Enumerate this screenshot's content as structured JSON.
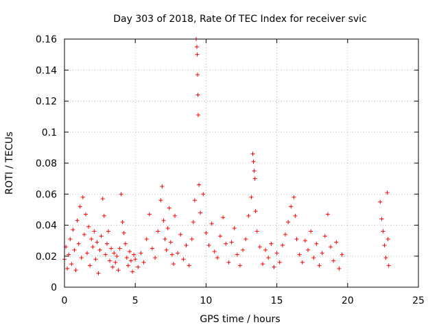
{
  "chart_data": {
    "type": "scatter",
    "title": "Day 303 of 2018, Rate Of TEC Index for receiver svic",
    "xlabel": "GPS time / hours",
    "ylabel": "ROTI / TECUs",
    "xlim": [
      0,
      25
    ],
    "ylim": [
      0,
      0.16
    ],
    "xticks": [
      0,
      5,
      10,
      15,
      20,
      25
    ],
    "xtick_labels": [
      "0",
      "5",
      "10",
      "15",
      "20",
      "25"
    ],
    "yticks": [
      0,
      0.02,
      0.04,
      0.06,
      0.08,
      0.1,
      0.12,
      0.14,
      0.16
    ],
    "ytick_labels": [
      "0",
      "0.02",
      "0.04",
      "0.06",
      "0.08",
      "0.1",
      "0.12",
      "0.14",
      "0.16"
    ],
    "grid": true,
    "marker": "+",
    "color": "#ff0000",
    "series": [
      {
        "name": "ROTI",
        "points": [
          [
            0.0,
            0.018
          ],
          [
            0.1,
            0.026
          ],
          [
            0.2,
            0.012
          ],
          [
            0.3,
            0.021
          ],
          [
            0.4,
            0.031
          ],
          [
            0.5,
            0.015
          ],
          [
            0.6,
            0.037
          ],
          [
            0.7,
            0.024
          ],
          [
            0.8,
            0.011
          ],
          [
            0.9,
            0.043
          ],
          [
            1.0,
            0.028
          ],
          [
            1.1,
            0.052
          ],
          [
            1.2,
            0.019
          ],
          [
            1.3,
            0.058
          ],
          [
            1.4,
            0.034
          ],
          [
            1.5,
            0.047
          ],
          [
            1.6,
            0.022
          ],
          [
            1.7,
            0.039
          ],
          [
            1.8,
            0.014
          ],
          [
            1.9,
            0.031
          ],
          [
            2.0,
            0.026
          ],
          [
            2.1,
            0.036
          ],
          [
            2.2,
            0.018
          ],
          [
            2.3,
            0.029
          ],
          [
            2.4,
            0.009
          ],
          [
            2.5,
            0.024
          ],
          [
            2.6,
            0.033
          ],
          [
            2.7,
            0.057
          ],
          [
            2.8,
            0.046
          ],
          [
            2.9,
            0.021
          ],
          [
            3.0,
            0.028
          ],
          [
            3.1,
            0.036
          ],
          [
            3.2,
            0.017
          ],
          [
            3.3,
            0.025
          ],
          [
            3.4,
            0.013
          ],
          [
            3.5,
            0.022
          ],
          [
            3.6,
            0.016
          ],
          [
            3.7,
            0.02
          ],
          [
            3.8,
            0.011
          ],
          [
            3.9,
            0.025
          ],
          [
            4.0,
            0.06
          ],
          [
            4.1,
            0.042
          ],
          [
            4.2,
            0.035
          ],
          [
            4.3,
            0.028
          ],
          [
            4.4,
            0.019
          ],
          [
            4.5,
            0.014
          ],
          [
            4.6,
            0.023
          ],
          [
            4.7,
            0.017
          ],
          [
            4.8,
            0.01
          ],
          [
            4.9,
            0.021
          ],
          [
            5.0,
            0.018
          ],
          [
            5.2,
            0.013
          ],
          [
            5.4,
            0.022
          ],
          [
            5.6,
            0.016
          ],
          [
            5.8,
            0.031
          ],
          [
            6.0,
            0.047
          ],
          [
            6.2,
            0.025
          ],
          [
            6.4,
            0.019
          ],
          [
            6.6,
            0.036
          ],
          [
            6.8,
            0.056
          ],
          [
            6.9,
            0.065
          ],
          [
            7.0,
            0.043
          ],
          [
            7.1,
            0.031
          ],
          [
            7.2,
            0.024
          ],
          [
            7.3,
            0.038
          ],
          [
            7.4,
            0.051
          ],
          [
            7.5,
            0.029
          ],
          [
            7.6,
            0.021
          ],
          [
            7.7,
            0.015
          ],
          [
            7.8,
            0.046
          ],
          [
            8.0,
            0.022
          ],
          [
            8.2,
            0.034
          ],
          [
            8.4,
            0.018
          ],
          [
            8.6,
            0.027
          ],
          [
            8.8,
            0.014
          ],
          [
            9.0,
            0.031
          ],
          [
            9.1,
            0.042
          ],
          [
            9.2,
            0.056
          ],
          [
            9.3,
            0.16
          ],
          [
            9.35,
            0.155
          ],
          [
            9.38,
            0.15
          ],
          [
            9.4,
            0.137
          ],
          [
            9.42,
            0.124
          ],
          [
            9.45,
            0.111
          ],
          [
            9.5,
            0.066
          ],
          [
            9.6,
            0.048
          ],
          [
            9.8,
            0.06
          ],
          [
            10.0,
            0.035
          ],
          [
            10.2,
            0.027
          ],
          [
            10.4,
            0.041
          ],
          [
            10.6,
            0.023
          ],
          [
            10.8,
            0.019
          ],
          [
            11.0,
            0.033
          ],
          [
            11.2,
            0.045
          ],
          [
            11.4,
            0.028
          ],
          [
            11.6,
            0.016
          ],
          [
            11.8,
            0.029
          ],
          [
            12.0,
            0.038
          ],
          [
            12.2,
            0.021
          ],
          [
            12.4,
            0.014
          ],
          [
            12.6,
            0.024
          ],
          [
            12.8,
            0.031
          ],
          [
            13.0,
            0.046
          ],
          [
            13.2,
            0.058
          ],
          [
            13.3,
            0.086
          ],
          [
            13.35,
            0.081
          ],
          [
            13.4,
            0.075
          ],
          [
            13.45,
            0.07
          ],
          [
            13.5,
            0.049
          ],
          [
            13.6,
            0.036
          ],
          [
            13.8,
            0.026
          ],
          [
            14.0,
            0.015
          ],
          [
            14.2,
            0.024
          ],
          [
            14.4,
            0.019
          ],
          [
            14.6,
            0.028
          ],
          [
            14.8,
            0.013
          ],
          [
            15.0,
            0.022
          ],
          [
            15.2,
            0.016
          ],
          [
            15.4,
            0.027
          ],
          [
            15.6,
            0.034
          ],
          [
            15.8,
            0.042
          ],
          [
            16.0,
            0.052
          ],
          [
            16.2,
            0.058
          ],
          [
            16.3,
            0.046
          ],
          [
            16.4,
            0.031
          ],
          [
            16.6,
            0.021
          ],
          [
            16.8,
            0.016
          ],
          [
            17.0,
            0.03
          ],
          [
            17.2,
            0.024
          ],
          [
            17.4,
            0.036
          ],
          [
            17.6,
            0.019
          ],
          [
            17.8,
            0.028
          ],
          [
            18.0,
            0.014
          ],
          [
            18.2,
            0.022
          ],
          [
            18.4,
            0.033
          ],
          [
            18.6,
            0.047
          ],
          [
            18.8,
            0.026
          ],
          [
            19.0,
            0.017
          ],
          [
            19.2,
            0.029
          ],
          [
            19.4,
            0.012
          ],
          [
            19.6,
            0.021
          ],
          [
            22.3,
            0.055
          ],
          [
            22.4,
            0.044
          ],
          [
            22.5,
            0.036
          ],
          [
            22.6,
            0.027
          ],
          [
            22.7,
            0.019
          ],
          [
            22.8,
            0.061
          ],
          [
            22.85,
            0.031
          ],
          [
            22.9,
            0.014
          ]
        ]
      }
    ]
  }
}
